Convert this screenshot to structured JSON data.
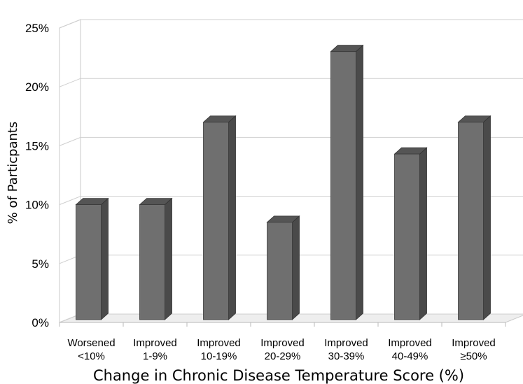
{
  "chart_data": {
    "type": "bar",
    "style": "3d-column",
    "bar_color": "#6f6f6f",
    "xlabel": "Change in Chronic Disease Temperature Score (%)",
    "ylabel": "% of Particpants",
    "ylim": [
      0,
      25
    ],
    "y_ticks": [
      "0%",
      "5%",
      "10%",
      "15%",
      "20%",
      "25%"
    ],
    "grid": true,
    "categories": [
      [
        "Worsened",
        "<10%"
      ],
      [
        "Improved",
        "1-9%"
      ],
      [
        "Improved",
        "10-19%"
      ],
      [
        "Improved",
        "20-29%"
      ],
      [
        "Improved",
        "30-39%"
      ],
      [
        "Improved",
        "40-49%"
      ],
      [
        "Improved",
        "≥50%"
      ]
    ],
    "values": [
      10,
      10,
      17,
      8.5,
      23,
      14.3,
      17
    ]
  }
}
